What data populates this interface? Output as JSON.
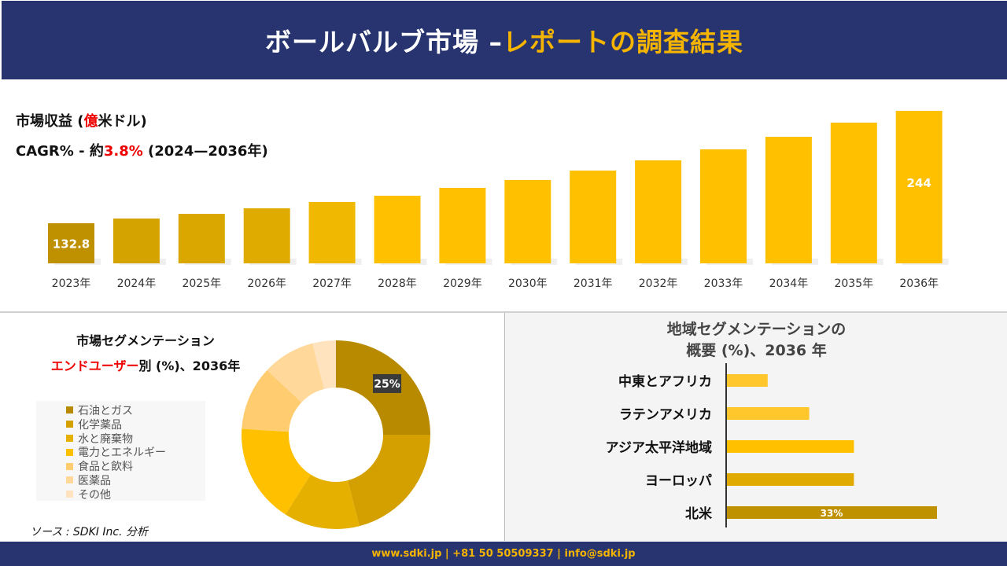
{
  "header": {
    "title_main": "ボールバルブ市場 –",
    "title_highlight": "レポートの調査結果"
  },
  "revenue": {
    "label_pre": "市場収益 (",
    "label_red": "億",
    "label_post": "米ドル)",
    "cagr_pre": "CAGR% - 約",
    "cagr_red": "3.8%",
    "cagr_post": " (2024—2036年)"
  },
  "chart_data": [
    {
      "type": "bar",
      "categories": [
        "2023年",
        "2024年",
        "2025年",
        "2026年",
        "2027年",
        "2028年",
        "2029年",
        "2030年",
        "2031年",
        "2032年",
        "2033年",
        "2034年",
        "2035年",
        "2036年"
      ],
      "values": [
        132.8,
        137.5,
        142.1,
        147.6,
        153.8,
        160.0,
        167.8,
        175.6,
        184.9,
        195.0,
        205.9,
        218.3,
        232.3,
        244
      ],
      "data_labels": {
        "0": "132.8",
        "13": "244"
      },
      "xlabel": "",
      "ylabel": "市場収益 (億米ドル)",
      "colors": [
        "#bf9000",
        "#d4a300",
        "#daa700",
        "#e0ab00",
        "#f0b800",
        "#ffc000",
        "#ffc000",
        "#ffc000",
        "#ffc000",
        "#ffc000",
        "#ffc000",
        "#ffc000",
        "#ffc000",
        "#ffc000"
      ]
    },
    {
      "type": "pie",
      "title_line1": "市場セグメンテーション",
      "title_red": "エンドユーザー",
      "title_rest": "別 (%)、2036年",
      "categories": [
        "石油とガス",
        "化学薬品",
        "水と廃棄物",
        "電力とエネルギー",
        "食品と飲料",
        "医薬品",
        "その他"
      ],
      "values": [
        25,
        21,
        13,
        17,
        11,
        9,
        4
      ],
      "data_labels": {
        "0": "25%"
      },
      "colors": [
        "#b88a00",
        "#d4a000",
        "#e6b000",
        "#ffc000",
        "#ffcc70",
        "#ffd89a",
        "#ffe3bf"
      ]
    },
    {
      "type": "bar",
      "orientation": "horizontal",
      "title_line1": "地域セグメンテーションの",
      "title_line2": "概要 (%)、2036 年",
      "categories": [
        "中東とアフリカ",
        "ラテンアメリカ",
        "アジア太平洋地域",
        "ヨーロッパ",
        "北米"
      ],
      "values": [
        6.5,
        13,
        20,
        20,
        33
      ],
      "data_labels": {
        "4": "33%"
      },
      "colors": [
        "#ffc72c",
        "#ffc72c",
        "#ffc000",
        "#e0aa00",
        "#bf9000"
      ]
    }
  ],
  "source": "ソース : SDKI Inc. 分析",
  "footer": "www.sdki.jp | +81 50 50509337 | info@sdki.jp"
}
